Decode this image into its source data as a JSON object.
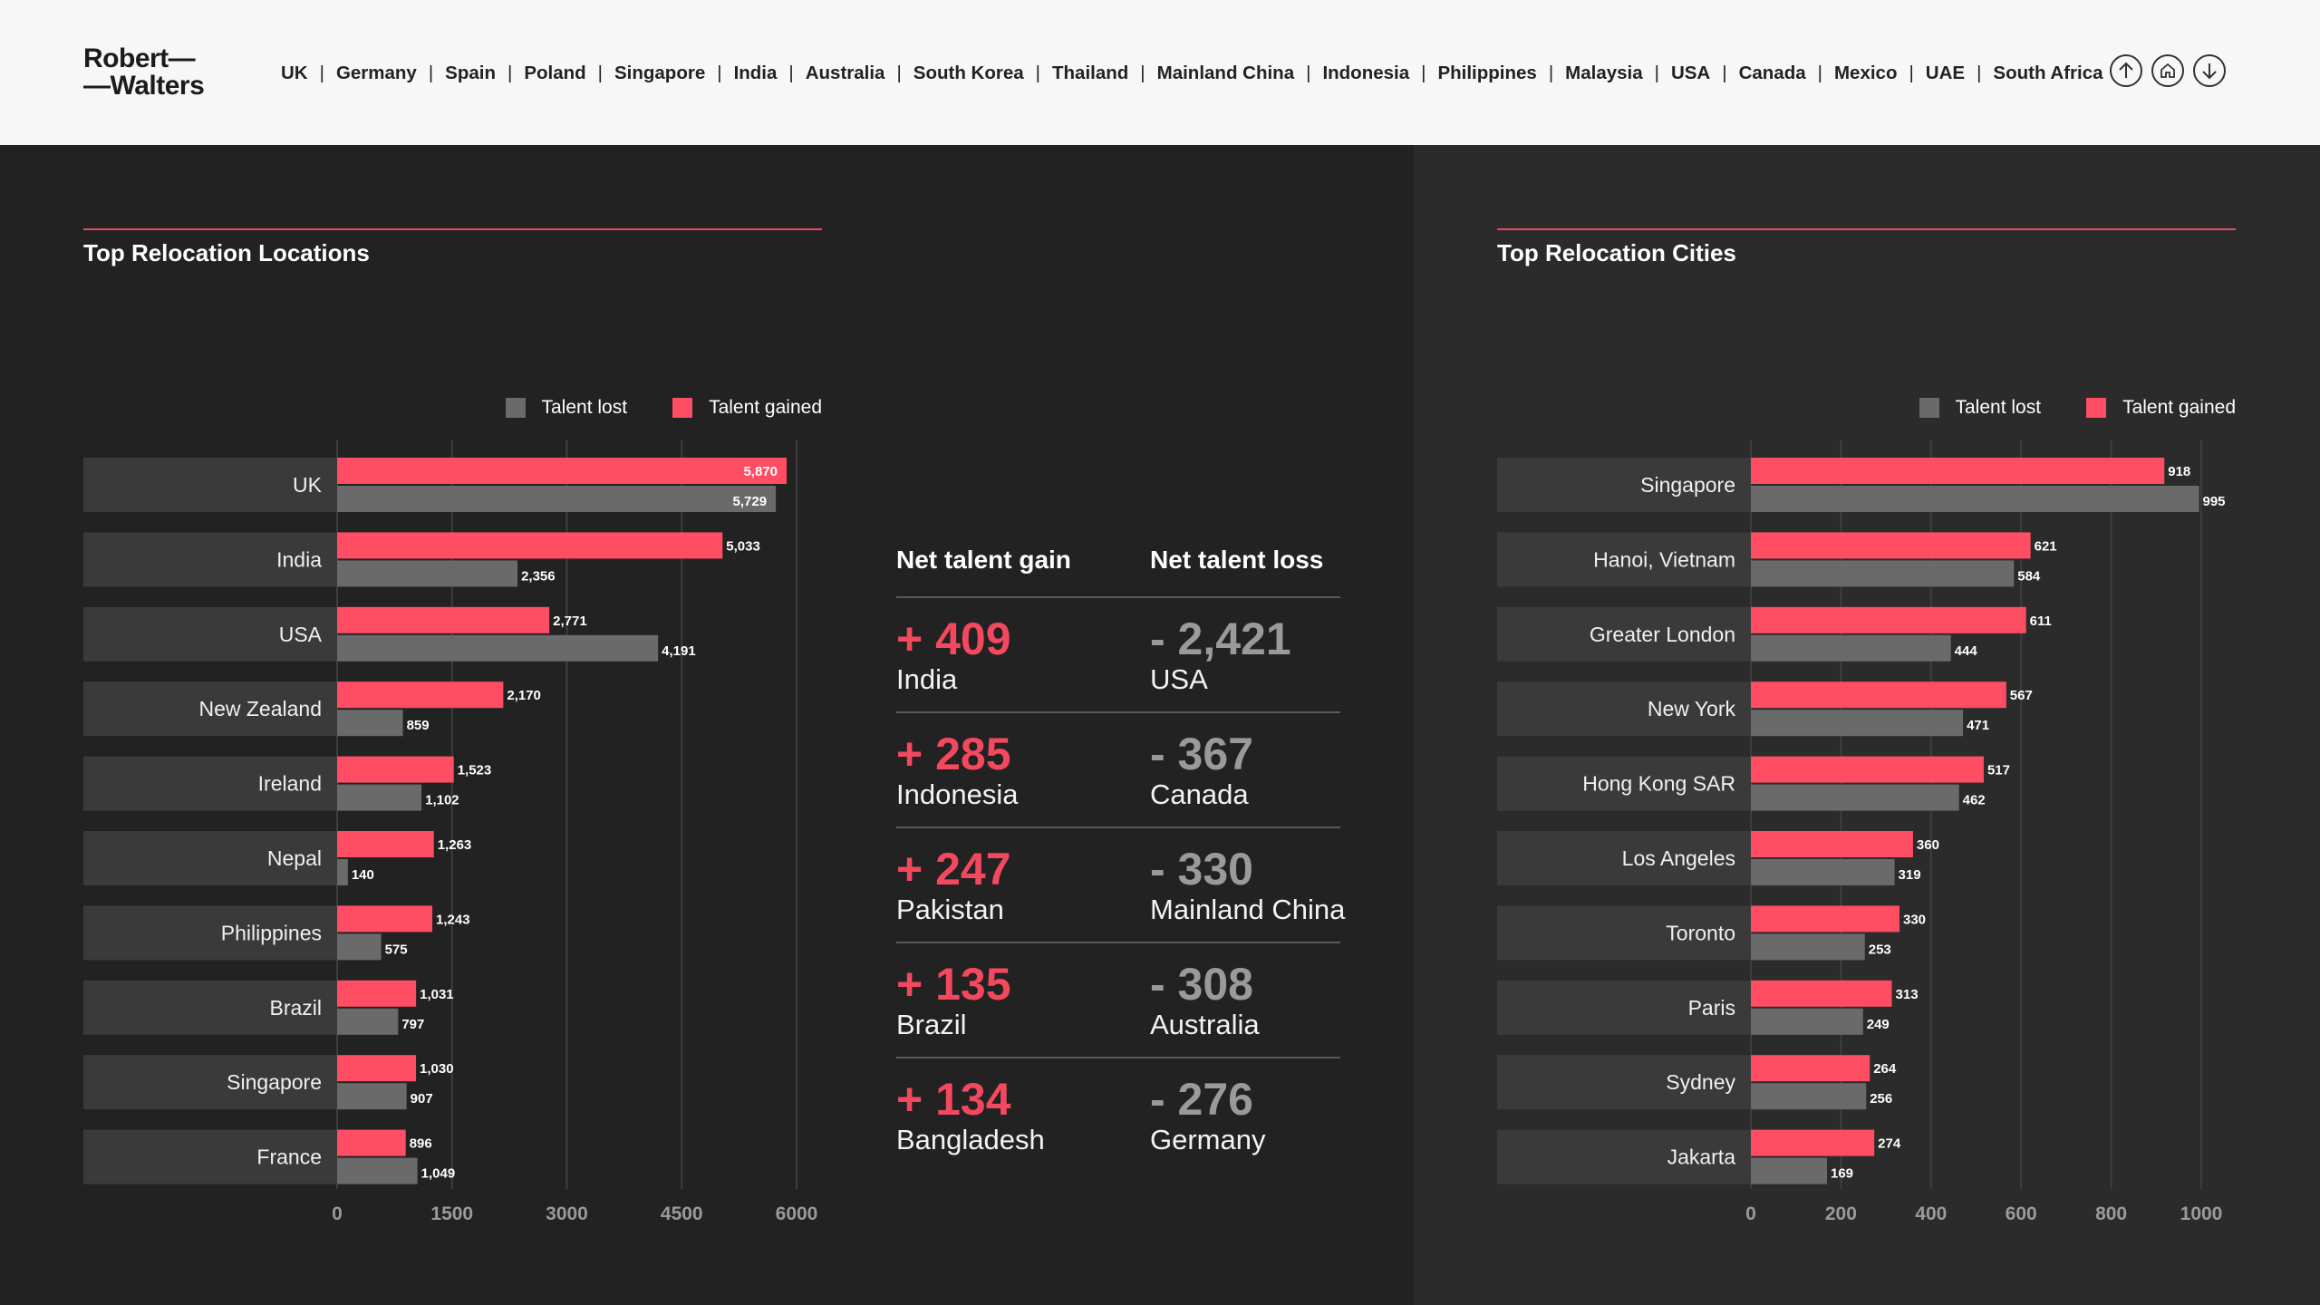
{
  "brand": {
    "line1": "Robert—",
    "line2": "—Walters"
  },
  "nav": [
    "UK",
    "Germany",
    "Spain",
    "Poland",
    "Singapore",
    "India",
    "Australia",
    "South Korea",
    "Thailand",
    "Mainland China",
    "Indonesia",
    "Philippines",
    "Malaysia",
    "USA",
    "Canada",
    "Mexico",
    "UAE",
    "South Africa"
  ],
  "nav_icons": [
    "arrow-up-icon",
    "home-icon",
    "arrow-down-icon"
  ],
  "colors": {
    "gained": "#ff4d64",
    "lost": "#6a6a6a",
    "accent": "#e8485f",
    "category_bg": "#3a3a3a"
  },
  "legend": {
    "lost": "Talent lost",
    "gained": "Talent gained"
  },
  "net": {
    "gain_header": "Net talent gain",
    "loss_header": "Net talent loss",
    "rows": [
      {
        "gain_value": "+ 409",
        "gain_country": "India",
        "loss_value": "- 2,421",
        "loss_country": "USA"
      },
      {
        "gain_value": "+ 285",
        "gain_country": "Indonesia",
        "loss_value": "- 367",
        "loss_country": "Canada"
      },
      {
        "gain_value": "+ 247",
        "gain_country": "Pakistan",
        "loss_value": "- 330",
        "loss_country": "Mainland China"
      },
      {
        "gain_value": "+ 135",
        "gain_country": "Brazil",
        "loss_value": "- 308",
        "loss_country": "Australia"
      },
      {
        "gain_value": "+ 134",
        "gain_country": "Bangladesh",
        "loss_value": "- 276",
        "loss_country": "Germany"
      }
    ]
  },
  "chart_data": [
    {
      "type": "bar",
      "orientation": "horizontal",
      "title": "Top Relocation Locations",
      "categories": [
        "UK",
        "India",
        "USA",
        "New Zealand",
        "Ireland",
        "Nepal",
        "Philippines",
        "Brazil",
        "Singapore",
        "France"
      ],
      "series": [
        {
          "name": "Talent gained",
          "values": [
            5870,
            5033,
            2771,
            2170,
            1523,
            1263,
            1243,
            1031,
            1030,
            896
          ],
          "labels": [
            "5,870",
            "5,033",
            "2,771",
            "2,170",
            "1,523",
            "1,263",
            "1,243",
            "1,031",
            "1,030",
            "896"
          ]
        },
        {
          "name": "Talent lost",
          "values": [
            5729,
            2356,
            4191,
            859,
            1102,
            140,
            575,
            797,
            907,
            1049
          ],
          "labels": [
            "5,729",
            "2,356",
            "4,191",
            "859",
            "1,102",
            "140",
            "575",
            "797",
            "907",
            "1,049"
          ]
        }
      ],
      "xticks": [
        0,
        1500,
        3000,
        4500,
        6000
      ],
      "xlim": [
        0,
        6000
      ],
      "grid": true,
      "legend": "top-right"
    },
    {
      "type": "bar",
      "orientation": "horizontal",
      "title": "Top Relocation Cities",
      "categories": [
        "Singapore",
        "Hanoi, Vietnam",
        "Greater London",
        "New York",
        "Hong Kong SAR",
        "Los Angeles",
        "Toronto",
        "Paris",
        "Sydney",
        "Jakarta"
      ],
      "series": [
        {
          "name": "Talent gained",
          "values": [
            918,
            621,
            611,
            567,
            517,
            360,
            330,
            313,
            264,
            274
          ],
          "labels": [
            "918",
            "621",
            "611",
            "567",
            "517",
            "360",
            "330",
            "313",
            "264",
            "274"
          ]
        },
        {
          "name": "Talent lost",
          "values": [
            995,
            584,
            444,
            471,
            462,
            319,
            253,
            249,
            256,
            169
          ],
          "labels": [
            "995",
            "584",
            "444",
            "471",
            "462",
            "319",
            "253",
            "249",
            "256",
            "169"
          ]
        }
      ],
      "xticks": [
        0,
        200,
        400,
        600,
        800,
        1000
      ],
      "xlim": [
        0,
        1000
      ],
      "grid": true,
      "legend": "top-right"
    }
  ]
}
